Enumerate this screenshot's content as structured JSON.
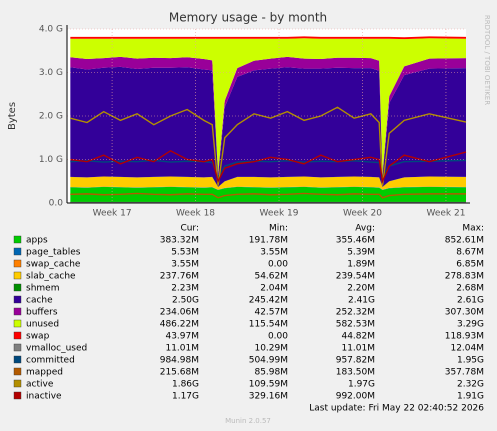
{
  "chart_data": {
    "type": "stacked-area",
    "title": "Memory usage - by month",
    "y_label": "Bytes",
    "watermark": "RRDTOOL / TOBI OETIKER",
    "x": [
      16.5,
      16.7,
      16.9,
      17.1,
      17.3,
      17.5,
      17.7,
      17.9,
      18.1,
      18.2,
      18.27,
      18.35,
      18.5,
      18.7,
      18.9,
      19.1,
      19.3,
      19.5,
      19.7,
      19.9,
      20.1,
      20.2,
      20.24,
      20.32,
      20.5,
      20.8,
      21.24
    ],
    "xlim": [
      16.46,
      21.24
    ],
    "xticks": [
      {
        "value": 17,
        "label": "Week 17"
      },
      {
        "value": 18,
        "label": "Week 18"
      },
      {
        "value": 19,
        "label": "Week 19"
      },
      {
        "value": 20,
        "label": "Week 20"
      },
      {
        "value": 21,
        "label": "Week 21"
      }
    ],
    "ylim": [
      0,
      4
    ],
    "yticks": [
      {
        "value": 0,
        "label": "0.0"
      },
      {
        "value": 1,
        "label": "1.0 G"
      },
      {
        "value": 2,
        "label": "2.0 G"
      },
      {
        "value": 3,
        "label": "3.0 G"
      },
      {
        "value": 4,
        "label": "4.0 G"
      }
    ],
    "grid": true,
    "legend_headers": [
      "Cur:",
      "Min:",
      "Avg:",
      "Max:"
    ],
    "series": [
      {
        "name": "apps",
        "color": "#00cc00",
        "stack": true,
        "values": [
          0.36,
          0.35,
          0.37,
          0.36,
          0.35,
          0.36,
          0.37,
          0.36,
          0.35,
          0.36,
          0.3,
          0.34,
          0.37,
          0.36,
          0.35,
          0.36,
          0.37,
          0.35,
          0.36,
          0.37,
          0.36,
          0.35,
          0.3,
          0.34,
          0.36,
          0.37,
          0.36
        ],
        "stats": [
          "383.32M",
          "191.78M",
          "355.46M",
          "852.61M"
        ]
      },
      {
        "name": "page_tables",
        "color": "#0066b3",
        "stack": true,
        "values": [
          0.005,
          0.005,
          0.005,
          0.005,
          0.005,
          0.005,
          0.005,
          0.005,
          0.005,
          0.005,
          0.005,
          0.005,
          0.005,
          0.005,
          0.005,
          0.005,
          0.005,
          0.005,
          0.005,
          0.005,
          0.005,
          0.005,
          0.005,
          0.005,
          0.005,
          0.005,
          0.005
        ],
        "stats": [
          "5.53M",
          "3.55M",
          "5.39M",
          "8.67M"
        ]
      },
      {
        "name": "swap_cache",
        "color": "#ff8000",
        "stack": true,
        "values": [
          0.003,
          0.003,
          0.003,
          0.003,
          0.003,
          0.003,
          0.003,
          0.003,
          0.003,
          0.003,
          0.003,
          0.003,
          0.003,
          0.003,
          0.003,
          0.003,
          0.003,
          0.003,
          0.003,
          0.003,
          0.003,
          0.003,
          0.003,
          0.003,
          0.003,
          0.003,
          0.003
        ],
        "stats": [
          "3.55M",
          "0.00",
          "1.89M",
          "6.85M"
        ]
      },
      {
        "name": "slab_cache",
        "color": "#ffcc00",
        "stack": true,
        "values": [
          0.23,
          0.23,
          0.23,
          0.23,
          0.23,
          0.23,
          0.23,
          0.23,
          0.23,
          0.23,
          0.06,
          0.15,
          0.22,
          0.23,
          0.23,
          0.23,
          0.23,
          0.23,
          0.23,
          0.23,
          0.23,
          0.23,
          0.06,
          0.15,
          0.22,
          0.23,
          0.23
        ],
        "stats": [
          "237.76M",
          "54.62M",
          "239.54M",
          "278.83M"
        ]
      },
      {
        "name": "shmem",
        "color": "#008f00",
        "stack": true,
        "values": [
          0.002,
          0.002,
          0.002,
          0.002,
          0.002,
          0.002,
          0.002,
          0.002,
          0.002,
          0.002,
          0.002,
          0.002,
          0.002,
          0.002,
          0.002,
          0.002,
          0.002,
          0.002,
          0.002,
          0.002,
          0.002,
          0.002,
          0.002,
          0.002,
          0.002,
          0.002,
          0.002
        ],
        "stats": [
          "2.23M",
          "2.04M",
          "2.20M",
          "2.68M"
        ]
      },
      {
        "name": "cache",
        "color": "#330099",
        "stack": true,
        "values": [
          2.52,
          2.48,
          2.5,
          2.53,
          2.49,
          2.51,
          2.5,
          2.52,
          2.48,
          2.45,
          0.25,
          1.7,
          2.3,
          2.45,
          2.5,
          2.52,
          2.48,
          2.5,
          2.51,
          2.49,
          2.5,
          2.45,
          0.25,
          1.8,
          2.35,
          2.48,
          2.5
        ],
        "stats": [
          "2.50G",
          "245.42M",
          "2.41G",
          "2.61G"
        ]
      },
      {
        "name": "buffers",
        "color": "#990099",
        "stack": true,
        "values": [
          0.23,
          0.24,
          0.22,
          0.23,
          0.24,
          0.23,
          0.22,
          0.23,
          0.24,
          0.23,
          0.05,
          0.15,
          0.2,
          0.22,
          0.23,
          0.24,
          0.23,
          0.22,
          0.23,
          0.24,
          0.23,
          0.23,
          0.05,
          0.15,
          0.2,
          0.23,
          0.23
        ],
        "stats": [
          "234.06M",
          "42.57M",
          "252.32M",
          "307.30M"
        ]
      },
      {
        "name": "unused",
        "color": "#ccff00",
        "stack": true,
        "values": [
          0.426,
          0.466,
          0.446,
          0.416,
          0.456,
          0.436,
          0.446,
          0.426,
          0.466,
          0.496,
          3.106,
          1.426,
          0.676,
          0.506,
          0.456,
          0.416,
          0.466,
          0.466,
          0.436,
          0.436,
          0.446,
          0.506,
          3.106,
          1.326,
          0.626,
          0.466,
          0.446
        ],
        "stats": [
          "486.22M",
          "115.54M",
          "582.53M",
          "3.29G"
        ]
      },
      {
        "name": "swap",
        "color": "#ff0000",
        "stack": true,
        "values": [
          0.044,
          0.044,
          0.044,
          0.044,
          0.044,
          0.044,
          0.044,
          0.044,
          0.044,
          0.044,
          0.044,
          0.044,
          0.044,
          0.044,
          0.044,
          0.044,
          0.044,
          0.044,
          0.044,
          0.044,
          0.044,
          0.044,
          0.044,
          0.044,
          0.044,
          0.044,
          0.044
        ],
        "stats": [
          "43.97M",
          "0.00",
          "44.82M",
          "118.93M"
        ]
      },
      {
        "name": "vmalloc_used",
        "color": "#808080",
        "stack": false,
        "values": [
          0.011,
          0.011,
          0.011,
          0.011,
          0.011,
          0.011,
          0.011,
          0.011,
          0.011,
          0.011,
          0.011,
          0.011,
          0.011,
          0.011,
          0.011,
          0.011,
          0.011,
          0.011,
          0.011,
          0.011,
          0.011,
          0.011,
          0.011,
          0.011,
          0.011,
          0.011,
          0.011
        ],
        "stats": [
          "11.01M",
          "10.29M",
          "11.01M",
          "12.04M"
        ]
      },
      {
        "name": "committed",
        "color": "#00487d",
        "stack": false,
        "values": [
          0.95,
          0.97,
          0.94,
          0.96,
          0.95,
          0.98,
          0.94,
          0.96,
          0.95,
          0.93,
          0.6,
          0.85,
          0.94,
          0.96,
          0.95,
          0.97,
          0.94,
          0.96,
          0.95,
          0.97,
          0.94,
          0.93,
          0.6,
          0.85,
          0.95,
          0.96,
          0.98
        ],
        "stats": [
          "984.98M",
          "504.99M",
          "957.82M",
          "1.95G"
        ]
      },
      {
        "name": "mapped",
        "color": "#b35a00",
        "stack": false,
        "values": [
          0.2,
          0.21,
          0.19,
          0.2,
          0.22,
          0.2,
          0.19,
          0.21,
          0.2,
          0.2,
          0.12,
          0.17,
          0.2,
          0.21,
          0.19,
          0.2,
          0.22,
          0.2,
          0.19,
          0.21,
          0.2,
          0.2,
          0.12,
          0.17,
          0.2,
          0.21,
          0.21
        ],
        "stats": [
          "215.68M",
          "85.98M",
          "183.50M",
          "357.78M"
        ]
      },
      {
        "name": "active",
        "color": "#b38f00",
        "stack": false,
        "values": [
          1.95,
          1.85,
          2.1,
          1.9,
          2.05,
          1.8,
          2.0,
          2.15,
          1.9,
          1.8,
          0.4,
          1.5,
          1.8,
          2.05,
          1.95,
          2.1,
          1.9,
          2.0,
          2.2,
          1.95,
          2.05,
          1.85,
          0.4,
          1.6,
          1.9,
          2.05,
          1.86
        ],
        "stats": [
          "1.86G",
          "109.59M",
          "1.97G",
          "2.32G"
        ]
      },
      {
        "name": "inactive",
        "color": "#b30000",
        "stack": false,
        "values": [
          1.0,
          0.95,
          1.1,
          0.9,
          1.05,
          0.95,
          1.2,
          1.0,
          0.95,
          1.0,
          0.5,
          0.8,
          0.9,
          0.95,
          1.05,
          1.0,
          0.9,
          1.1,
          0.95,
          1.0,
          1.05,
          1.0,
          0.5,
          0.85,
          1.1,
          0.95,
          1.17
        ],
        "stats": [
          "1.17G",
          "329.16M",
          "992.00M",
          "1.91G"
        ]
      }
    ],
    "last_update": "Last update: Fri May 22 02:40:52 2026",
    "footer": "Munin 2.0.57"
  }
}
